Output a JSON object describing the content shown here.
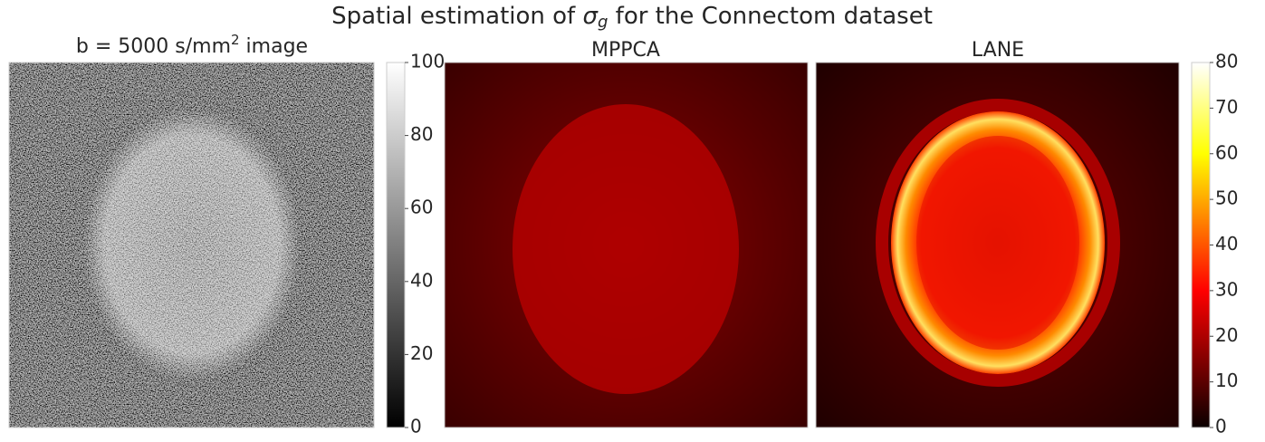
{
  "title": [
    "Spatial estimation of ",
    "σ",
    "g",
    " for the Connectom dataset"
  ],
  "chart_data": [
    {
      "type": "image",
      "title": [
        "b = 5000 s/mm",
        "2",
        " image"
      ],
      "colormap": "gray",
      "colorbar": {
        "ylim": [
          0,
          100
        ],
        "yticks": [
          0,
          20,
          40,
          60,
          80,
          100
        ]
      }
    },
    {
      "type": "image",
      "title": [
        "MPPCA"
      ],
      "colormap": "hot"
    },
    {
      "type": "image",
      "title": [
        "LANE"
      ],
      "colormap": "hot",
      "colorbar": {
        "ylim": [
          0,
          80
        ],
        "yticks": [
          0,
          10,
          20,
          30,
          40,
          50,
          60,
          70,
          80
        ]
      }
    }
  ]
}
